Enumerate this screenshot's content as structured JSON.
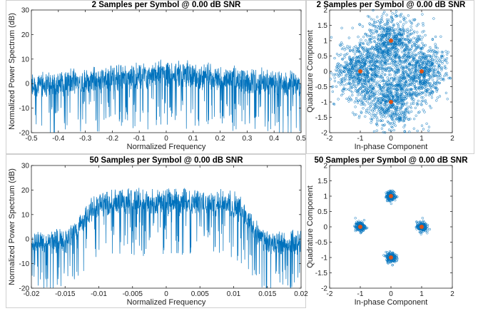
{
  "colors": {
    "series": "#0072bd",
    "reference": "#d95319",
    "axis": "#262626"
  },
  "chart_data": [
    {
      "id": "psd2",
      "type": "line",
      "title": "2 Samples per Symbol @ 0.00 dB SNR",
      "xlabel": "Normalized Frequency",
      "ylabel": "Normalized Power Spectrum (dB)",
      "xlim": [
        -0.5,
        0.5
      ],
      "ylim": [
        -20,
        30
      ],
      "xticks": [
        -0.5,
        -0.4,
        -0.3,
        -0.2,
        -0.1,
        0,
        0.1,
        0.2,
        0.3,
        0.4,
        0.5
      ],
      "yticks": [
        -20,
        -10,
        0,
        10,
        20,
        30
      ],
      "series": [
        {
          "values_desc": "noisy spectrum",
          "x": [
            -0.5,
            -0.4,
            -0.3,
            -0.2,
            -0.1,
            0,
            0.1,
            0.2,
            0.3,
            0.4,
            0.5
          ],
          "y_peak": [
            5,
            6,
            7,
            8,
            9,
            10,
            9,
            8,
            7,
            6,
            5
          ],
          "y_mean": [
            -3,
            -2,
            -1,
            0,
            1,
            1.5,
            1,
            0,
            -1,
            -2,
            -3
          ]
        }
      ]
    },
    {
      "id": "const2",
      "type": "scatter",
      "title": "2 Samples per Symbol @ 0.00 dB SNR",
      "xlabel": "In-phase Component",
      "ylabel": "Quadrature Component",
      "xlim": [
        -2,
        2
      ],
      "ylim": [
        -2,
        2
      ],
      "xticks": [
        -2,
        -1,
        0,
        1,
        2
      ],
      "yticks": [
        -2,
        -1.5,
        -1,
        -0.5,
        0,
        0.5,
        1,
        1.5,
        2
      ],
      "reference_points": [
        [
          -1,
          0
        ],
        [
          1,
          0
        ],
        [
          0,
          1
        ],
        [
          0,
          -1
        ]
      ],
      "spread": 0.45
    },
    {
      "id": "psd50",
      "type": "line",
      "title": "50 Samples per Symbol @ 0.00 dB SNR",
      "xlabel": "Normalized Frequency",
      "ylabel": "Normalized Power Spectrum (dB)",
      "xlim": [
        -0.02,
        0.02
      ],
      "ylim": [
        -20,
        30
      ],
      "xticks": [
        -0.02,
        -0.015,
        -0.01,
        -0.005,
        0,
        0.005,
        0.01,
        0.015,
        0.02
      ],
      "yticks": [
        -20,
        -10,
        0,
        10,
        20,
        30
      ],
      "series": [
        {
          "x": [
            -0.02,
            -0.015,
            -0.013,
            -0.011,
            -0.01,
            -0.005,
            0,
            0.005,
            0.01,
            0.011,
            0.013,
            0.015,
            0.02
          ],
          "y_peak": [
            4,
            4,
            10,
            18,
            20,
            21,
            21,
            21,
            20,
            18,
            10,
            4,
            4
          ],
          "y_mean": [
            -3,
            -3,
            3,
            10,
            12,
            13,
            13,
            13,
            12,
            10,
            3,
            -3,
            -3
          ]
        }
      ]
    },
    {
      "id": "const50",
      "type": "scatter",
      "title": "50 Samples per Symbol @ 0.00 dB SNR",
      "xlabel": "In-phase Component",
      "ylabel": "Quadrature Component",
      "xlim": [
        -2,
        2
      ],
      "ylim": [
        -2,
        2
      ],
      "xticks": [
        -2,
        -1,
        0,
        1,
        2
      ],
      "yticks": [
        -2,
        -1.5,
        -1,
        -0.5,
        0,
        0.5,
        1,
        1.5,
        2
      ],
      "reference_points": [
        [
          -1,
          0
        ],
        [
          1,
          0
        ],
        [
          0,
          1
        ],
        [
          0,
          -1
        ]
      ],
      "spread": 0.08
    }
  ]
}
